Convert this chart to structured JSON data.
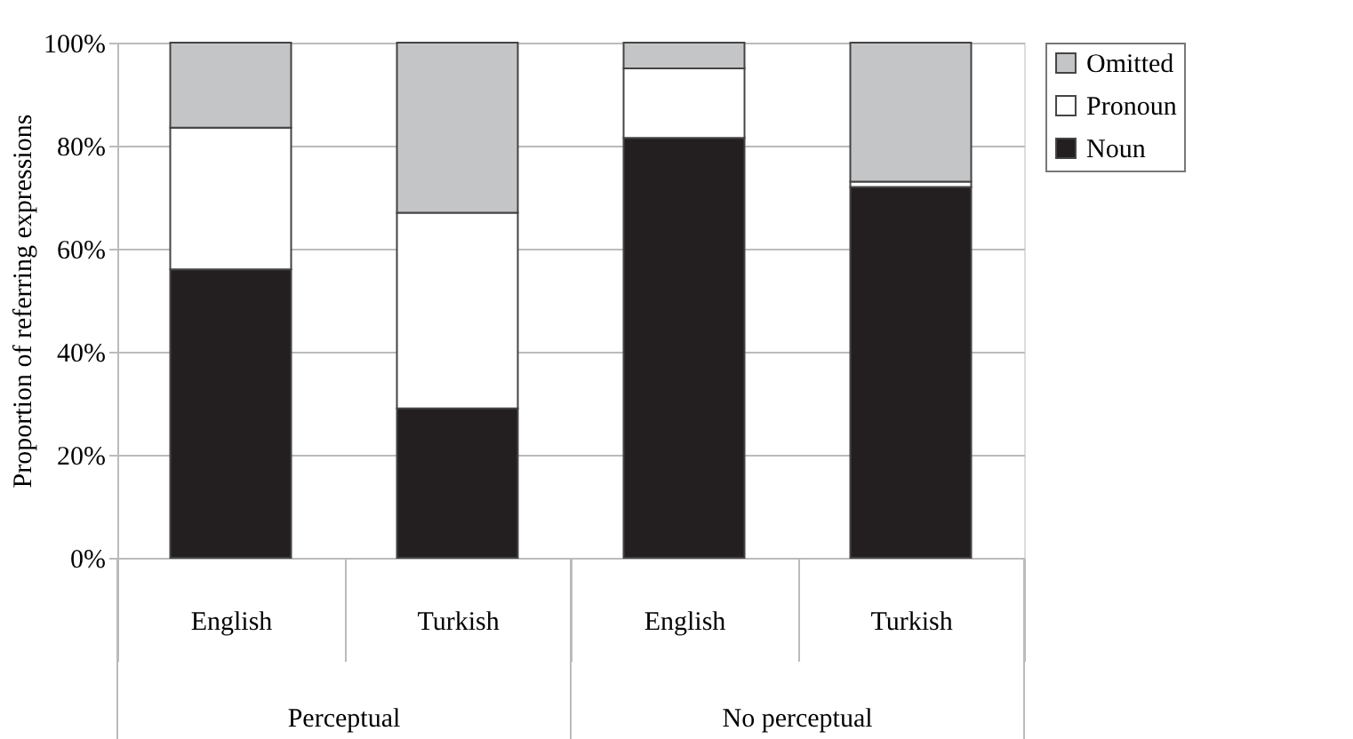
{
  "chart_data": {
    "type": "bar",
    "stacked": true,
    "ylabel": "Proportion of referring expressions",
    "categories": [
      "English",
      "Turkish",
      "English",
      "Turkish"
    ],
    "series": [
      {
        "name": "Noun",
        "color": "#231f20",
        "values": [
          56,
          29,
          81.5,
          72
        ]
      },
      {
        "name": "Pronoun",
        "color": "#ffffff",
        "values": [
          27.5,
          38,
          13.5,
          1
        ]
      },
      {
        "name": "Omitted",
        "color": "#c4c5c7",
        "values": [
          16.5,
          33,
          5,
          27
        ]
      }
    ],
    "ylim": [
      0,
      100
    ],
    "yticks": [
      {
        "value": 0,
        "label": "0%"
      },
      {
        "value": 20,
        "label": "20%"
      },
      {
        "value": 40,
        "label": "40%"
      },
      {
        "value": 60,
        "label": "60%"
      },
      {
        "value": 80,
        "label": "80%"
      },
      {
        "value": 100,
        "label": "100%"
      }
    ],
    "grid": "y",
    "legend": "right",
    "annotations": [
      "Perceptual",
      "No perceptual"
    ]
  }
}
